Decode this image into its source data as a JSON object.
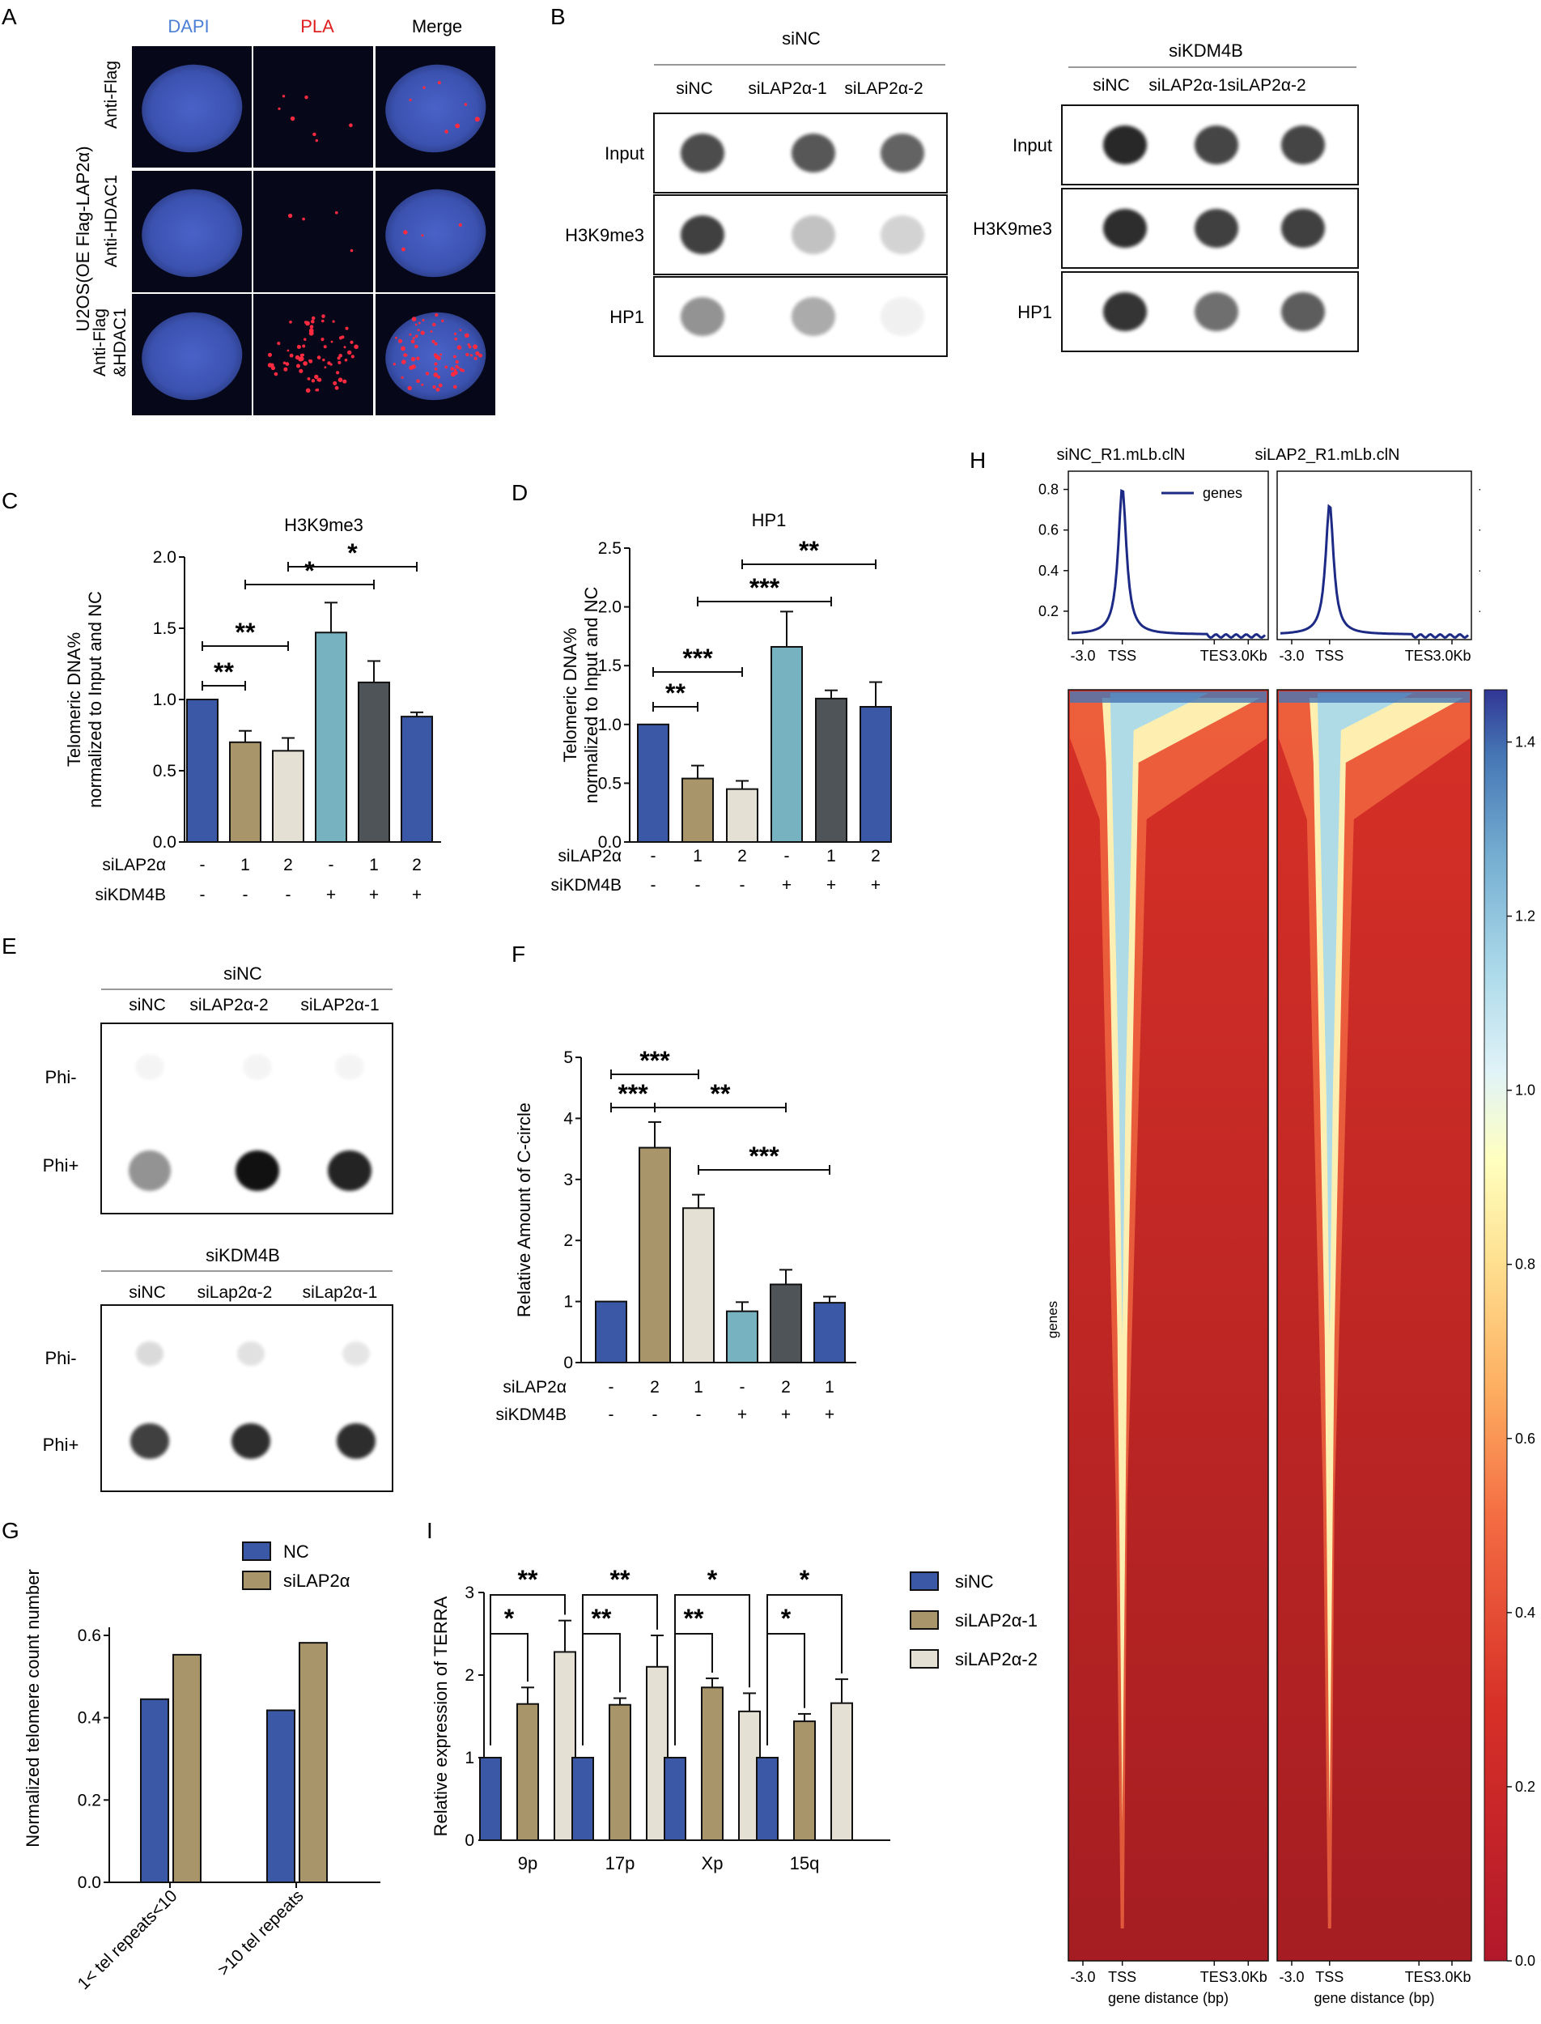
{
  "colors": {
    "c1": "#3a58a5",
    "c2": "#a8956a",
    "c3": "#e4e0d4",
    "c4": "#77b2c1",
    "c5": "#4e5458",
    "c6": "#3a58a5",
    "dapi": "#4a7fd4",
    "pla": "#e02020"
  },
  "panels": {
    "A": "A",
    "B": "B",
    "C": "C",
    "D": "D",
    "E": "E",
    "F": "F",
    "G": "G",
    "H": "H",
    "I": "I"
  },
  "panelA": {
    "col_headers": [
      "DAPI",
      "PLA",
      "Merge"
    ],
    "side_label": "U2OS(OE Flag-LAP2α)",
    "row_labels": [
      "Anti-Flag",
      "Anti-HDAC1"
    ],
    "row3_label_line1": "Anti-Flag",
    "row3_label_line2": "&HDAC1"
  },
  "panelB": {
    "group1_title": "siNC",
    "group2_title": "siKDM4B",
    "lanes": [
      "siNC",
      "siLAP2α-1",
      "siLAP2α-2"
    ],
    "rows": [
      "Input",
      "H3K9me3",
      "HP1"
    ]
  },
  "panelE": {
    "group1_title": "siNC",
    "group1_lanes": [
      "siNC",
      "siLAP2α-2",
      "siLAP2α-1"
    ],
    "group2_title": "siKDM4B",
    "group2_lanes": [
      "siNC",
      "siLap2α-2",
      "siLap2α-1"
    ],
    "rows": [
      "Phi-",
      "Phi+"
    ]
  },
  "conditions": {
    "row1_label": "siLAP2α",
    "row2_label": "siKDM4B",
    "cd_row1": [
      "-",
      "1",
      "2",
      "-",
      "1",
      "2"
    ],
    "f_row1": [
      "-",
      "2",
      "1",
      "-",
      "2",
      "1"
    ],
    "row2": [
      "-",
      "-",
      "-",
      "+",
      "+",
      "+"
    ]
  },
  "heatmap": {
    "sample1": "siNC_R1.mLb.clN",
    "sample2": "siLAP2_R1.mLb.clN",
    "legend": "genes",
    "profile_yticks": [
      "0.8",
      "0.6",
      "0.4",
      "0.2"
    ],
    "xticks": [
      "-3.0",
      "TSS",
      "TES",
      "3.0Kb"
    ],
    "xlabel": "gene distance (bp)",
    "ylabel": "genes",
    "colorbar_ticks": [
      "1.4",
      "1.2",
      "1.0",
      "0.8",
      "0.6",
      "0.4",
      "0.2",
      "0.0"
    ]
  },
  "chart_data": [
    {
      "panel": "C",
      "type": "bar",
      "title": "H3K9me3",
      "ylabel": "Telomeric DNA%\nnormalized to Input and NC",
      "ylim": [
        0,
        2.0
      ],
      "yticks": [
        "0.0",
        "0.5",
        "1.0",
        "1.5",
        "2.0"
      ],
      "values": [
        1.0,
        0.7,
        0.64,
        1.47,
        1.12,
        0.88
      ],
      "errors": [
        0,
        0.08,
        0.09,
        0.21,
        0.15,
        0.03
      ],
      "significance": [
        {
          "from": 0,
          "to": 1,
          "label": "**"
        },
        {
          "from": 0,
          "to": 2,
          "label": "**"
        },
        {
          "from": 1,
          "to": 4,
          "label": "*"
        },
        {
          "from": 2,
          "to": 5,
          "label": "*"
        }
      ]
    },
    {
      "panel": "D",
      "type": "bar",
      "title": "HP1",
      "ylabel": "Telomeric DNA%\nnormalized to Input and NC",
      "ylim": [
        0,
        2.5
      ],
      "yticks": [
        "0.0",
        "0.5",
        "1.0",
        "1.5",
        "2.0",
        "2.5"
      ],
      "values": [
        1.0,
        0.54,
        0.45,
        1.66,
        1.22,
        1.15
      ],
      "errors": [
        0,
        0.11,
        0.07,
        0.3,
        0.07,
        0.21
      ],
      "significance": [
        {
          "from": 0,
          "to": 1,
          "label": "**"
        },
        {
          "from": 0,
          "to": 2,
          "label": "***"
        },
        {
          "from": 1,
          "to": 4,
          "label": "***"
        },
        {
          "from": 2,
          "to": 5,
          "label": "**"
        }
      ]
    },
    {
      "panel": "F",
      "type": "bar",
      "ylabel": "Relative Amount of C-circle",
      "ylim": [
        0,
        5
      ],
      "yticks": [
        "0",
        "1",
        "2",
        "3",
        "4",
        "5"
      ],
      "values": [
        1.0,
        3.52,
        2.53,
        0.84,
        1.28,
        0.98
      ],
      "errors": [
        0,
        0.42,
        0.22,
        0.15,
        0.24,
        0.1
      ],
      "significance": [
        {
          "from": 0,
          "to": 2,
          "label": "***"
        },
        {
          "from": 0,
          "to": 1,
          "label": "***"
        },
        {
          "from": 1,
          "to": 4,
          "label": "**"
        },
        {
          "from": 2,
          "to": 5,
          "label": "***"
        }
      ]
    },
    {
      "panel": "G",
      "type": "bar",
      "ylabel": "Normalized telomere count number",
      "ylim": [
        0,
        0.6
      ],
      "yticks": [
        "0.0",
        "0.2",
        "0.4",
        "0.6"
      ],
      "categories": [
        "1< tel repeats<10",
        ">10 tel repeats"
      ],
      "series": [
        {
          "name": "NC",
          "values": [
            0.445,
            0.418
          ]
        },
        {
          "name": "siLAP2α",
          "values": [
            0.553,
            0.582
          ]
        }
      ]
    },
    {
      "panel": "I",
      "type": "bar",
      "ylabel": "Relative expression of TERRA",
      "ylim": [
        0,
        3
      ],
      "yticks": [
        "0",
        "1",
        "2",
        "3"
      ],
      "categories": [
        "9p",
        "17p",
        "Xp",
        "15q"
      ],
      "series": [
        {
          "name": "siNC",
          "values": [
            1.0,
            1.0,
            1.0,
            1.0
          ],
          "errors": [
            0,
            0,
            0,
            0
          ]
        },
        {
          "name": "siLAP2α-1",
          "values": [
            1.65,
            1.64,
            1.85,
            1.44
          ],
          "errors": [
            0.2,
            0.08,
            0.11,
            0.09
          ]
        },
        {
          "name": "siLAP2α-2",
          "values": [
            2.28,
            2.1,
            1.56,
            1.66
          ],
          "errors": [
            0.38,
            0.38,
            0.22,
            0.29
          ]
        }
      ],
      "significance": [
        {
          "cat": 0,
          "inner": "*",
          "outer": "**"
        },
        {
          "cat": 1,
          "inner": "**",
          "outer": "**"
        },
        {
          "cat": 2,
          "inner": "**",
          "outer": "*"
        },
        {
          "cat": 3,
          "inner": "*",
          "outer": "*"
        }
      ]
    },
    {
      "panel": "H",
      "type": "line",
      "title": "siNC_R1.mLb.clN / siLAP2_R1.mLb.clN",
      "x": [
        "-3.0",
        "TSS",
        "TES",
        "3.0Kb"
      ],
      "series": [
        {
          "name": "genes",
          "peak": [
            0.81,
            0.73
          ]
        }
      ],
      "ylim": [
        0.1,
        0.85
      ]
    }
  ]
}
